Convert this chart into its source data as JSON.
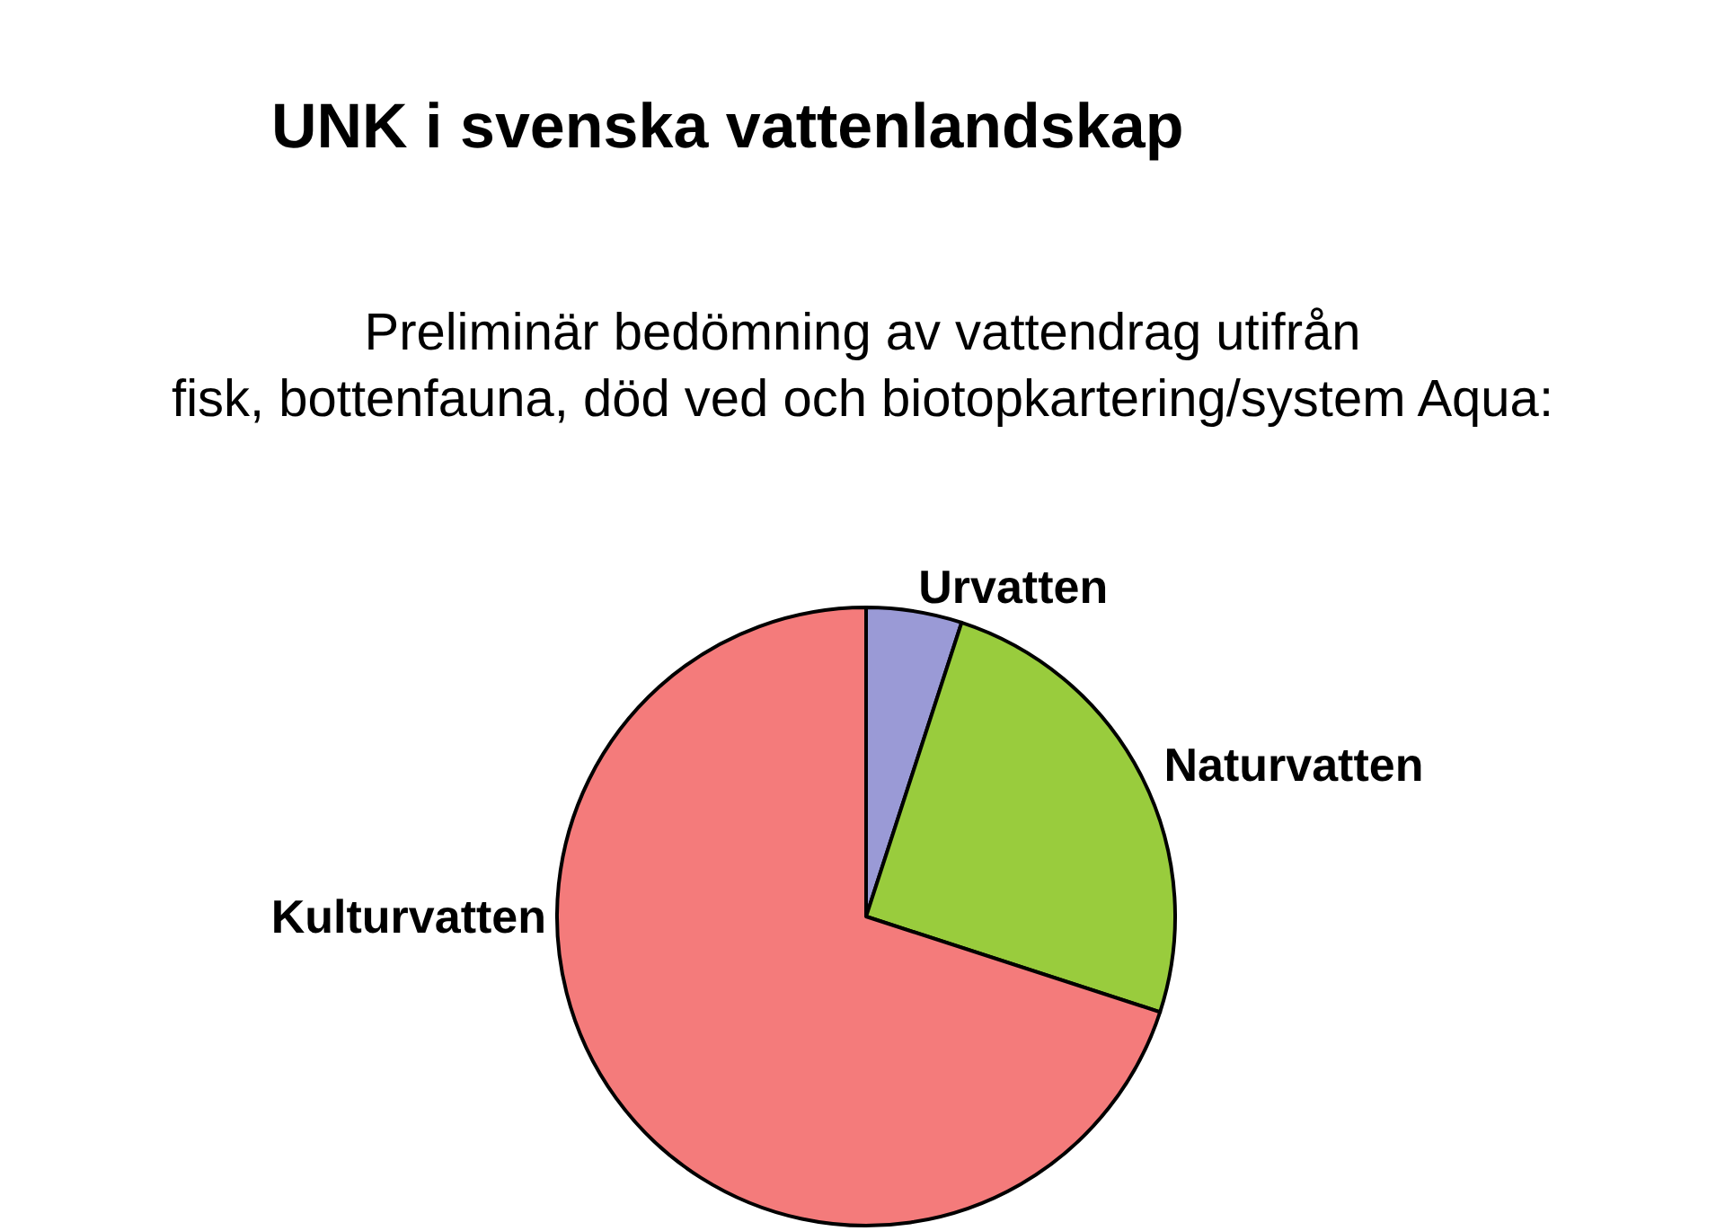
{
  "chart_data": {
    "type": "pie",
    "title": "UNK i svenska vattenlandskap",
    "subtitle": "Preliminär bedömning av vattendrag utifrån\nfisk, bottenfauna, död ved och biotopkartering/system Aqua:",
    "categories": [
      "Urvatten",
      "Naturvatten",
      "Kulturvatten"
    ],
    "values": [
      5,
      25,
      70
    ],
    "colors": [
      "#9a9ad6",
      "#99cc3d",
      "#f47b7b"
    ]
  }
}
